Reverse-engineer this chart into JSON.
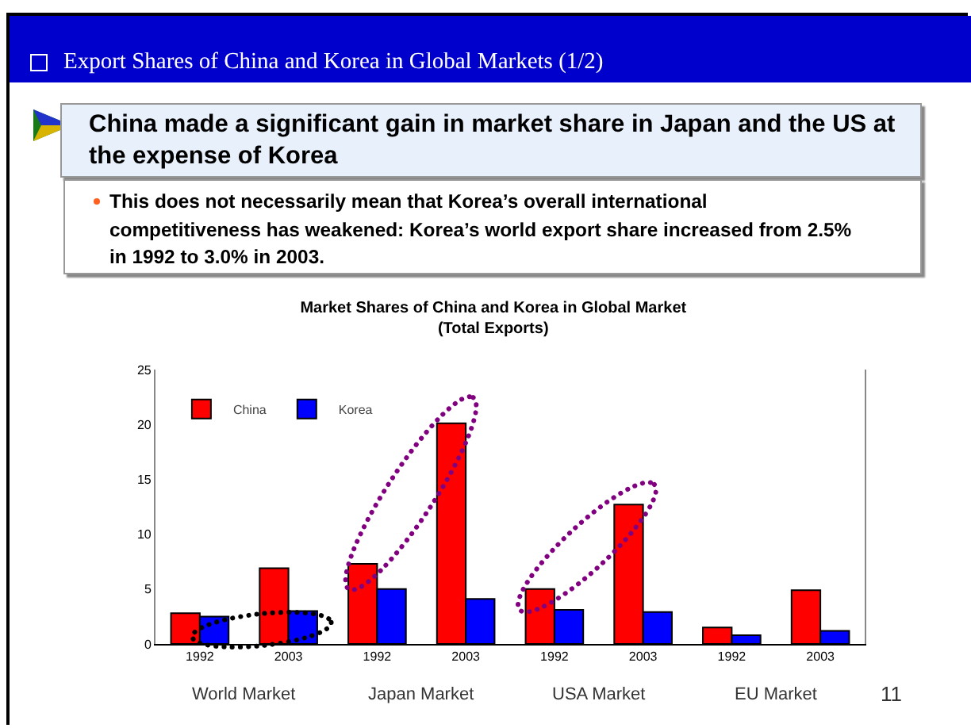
{
  "chart_data": {
    "type": "bar",
    "title": "Market Shares of China and Korea in Global Market\n(Total Exports)",
    "categories": [
      "1992",
      "2003",
      "1992",
      "2003",
      "1992",
      "2003",
      "1992",
      "2003"
    ],
    "series": [
      {
        "name": "China",
        "color": "#ff0000",
        "values": [
          2.8,
          6.9,
          7.3,
          20.1,
          5.0,
          12.7,
          1.5,
          4.9
        ]
      },
      {
        "name": "Korea",
        "color": "#0000ff",
        "values": [
          2.5,
          3.0,
          5.0,
          4.1,
          3.1,
          2.9,
          0.8,
          1.2
        ]
      }
    ],
    "ylim": [
      0,
      25
    ],
    "yticks": [
      0,
      5,
      10,
      15,
      20,
      25
    ],
    "grid": false,
    "legend": "top left",
    "annotations": [
      "Export Shares of China and Korea in Global Markets (1/2)",
      "China made a significant gain in market share in Japan and the US at the expense of Korea",
      "This does not necessarily mean that Korea’s overall international competitiveness has weakened: Korea’s world export share increased from 2.5% in 1992 to 3.0% in 2003.",
      "World Market",
      "Japan Market",
      "USA Market",
      "EU Market",
      "11"
    ]
  }
}
